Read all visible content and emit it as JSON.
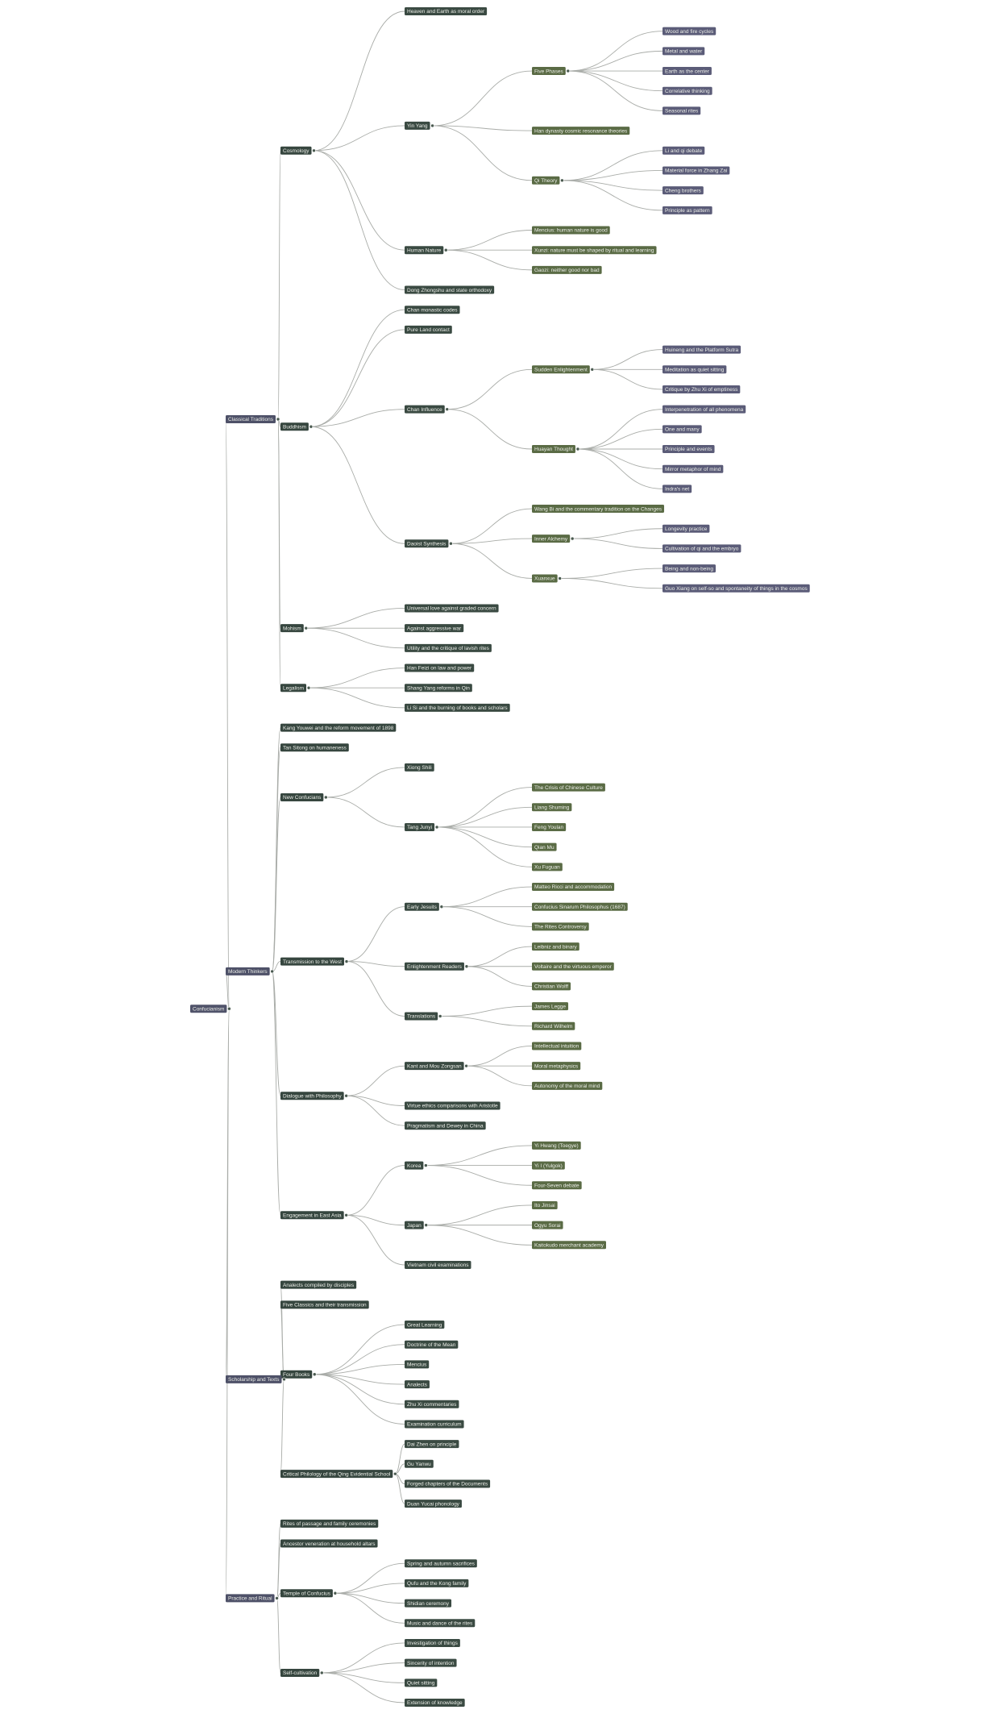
{
  "depth_colors": [
    "#50536a",
    "#4e5168",
    "#36463f",
    "#3a4a42",
    "#5a6b45",
    "#5b5c78"
  ],
  "edge_color": "#a9aca8",
  "tree": {
    "label": "Confucianism",
    "children": [
      {
        "label": "Classical Traditions",
        "children": [
          {
            "label": "Cosmology",
            "children": [
              {
                "label": "Heaven and Earth as moral order"
              },
              {
                "label": "Yin Yang",
                "children": [
                  {
                    "label": "Five Phases",
                    "children": [
                      {
                        "label": "Wood and fire cycles"
                      },
                      {
                        "label": "Metal and water"
                      },
                      {
                        "label": "Earth as the center"
                      },
                      {
                        "label": "Correlative thinking"
                      },
                      {
                        "label": "Seasonal rites"
                      }
                    ]
                  },
                  {
                    "label": "Han dynasty cosmic resonance theories"
                  },
                  {
                    "label": "Qi Theory",
                    "children": [
                      {
                        "label": "Li and qi debate"
                      },
                      {
                        "label": "Material force in Zhang Zai"
                      },
                      {
                        "label": "Cheng brothers"
                      },
                      {
                        "label": "Principle as pattern"
                      }
                    ]
                  }
                ]
              },
              {
                "label": "Human Nature",
                "children": [
                  {
                    "label": "Mencius: human nature is good"
                  },
                  {
                    "label": "Xunzi: nature must be shaped by ritual and learning"
                  },
                  {
                    "label": "Gaozi: neither good nor bad"
                  }
                ]
              },
              {
                "label": "Dong Zhongshu and state orthodoxy"
              }
            ]
          },
          {
            "label": "Buddhism",
            "children": [
              {
                "label": "Chan monastic codes"
              },
              {
                "label": "Pure Land contact"
              },
              {
                "label": "Chan Influence",
                "children": [
                  {
                    "label": "Sudden Enlightenment",
                    "children": [
                      {
                        "label": "Huineng and the Platform Sutra"
                      },
                      {
                        "label": "Meditation as quiet sitting"
                      },
                      {
                        "label": "Critique by Zhu Xi of emptiness"
                      }
                    ]
                  },
                  {
                    "label": "Huayan Thought",
                    "children": [
                      {
                        "label": "Interpenetration of all phenomena"
                      },
                      {
                        "label": "One and many"
                      },
                      {
                        "label": "Principle and events"
                      },
                      {
                        "label": "Mirror metaphor of mind"
                      },
                      {
                        "label": "Indra's net"
                      }
                    ]
                  }
                ]
              },
              {
                "label": "Daoist Synthesis",
                "children": [
                  {
                    "label": "Wang Bi and the commentary tradition on the Changes"
                  },
                  {
                    "label": "Inner Alchemy",
                    "children": [
                      {
                        "label": "Longevity practice"
                      },
                      {
                        "label": "Cultivation of qi and the embryo"
                      }
                    ]
                  },
                  {
                    "label": "Xuanxue",
                    "children": [
                      {
                        "label": "Being and non-being"
                      },
                      {
                        "label": "Guo Xiang on self-so and spontaneity of things in the cosmos"
                      }
                    ]
                  }
                ]
              }
            ]
          },
          {
            "label": "Mohism",
            "children": [
              {
                "label": "Universal love against graded concern"
              },
              {
                "label": "Against aggressive war"
              },
              {
                "label": "Utility and the critique of lavish rites"
              }
            ]
          },
          {
            "label": "Legalism",
            "children": [
              {
                "label": "Han Feizi on law and power"
              },
              {
                "label": "Shang Yang reforms in Qin"
              },
              {
                "label": "Li Si and the burning of books and scholars"
              }
            ]
          }
        ]
      },
      {
        "label": "Modern Thinkers",
        "children": [
          {
            "label": "Kang Youwei and the reform movement of 1898"
          },
          {
            "label": "Tan Sitong on humaneness"
          },
          {
            "label": "New Confucians",
            "children": [
              {
                "label": "Xiong Shili"
              },
              {
                "label": "Tang Junyi",
                "children": [
                  {
                    "label": "The Crisis of Chinese Culture"
                  },
                  {
                    "label": "Liang Shuming"
                  },
                  {
                    "label": "Feng Youlan"
                  },
                  {
                    "label": "Qian Mu"
                  },
                  {
                    "label": "Xu Fuguan"
                  }
                ]
              }
            ]
          },
          {
            "label": "Transmission to the West",
            "children": [
              {
                "label": "Early Jesuits",
                "children": [
                  {
                    "label": "Matteo Ricci and accommodation"
                  },
                  {
                    "label": "Confucius Sinarum Philosophus (1687)"
                  },
                  {
                    "label": "The Rites Controversy"
                  }
                ]
              },
              {
                "label": "Enlightenment Readers",
                "children": [
                  {
                    "label": "Leibniz and binary"
                  },
                  {
                    "label": "Voltaire and the virtuous emperor"
                  },
                  {
                    "label": "Christian Wolff"
                  }
                ]
              },
              {
                "label": "Translations",
                "children": [
                  {
                    "label": "James Legge"
                  },
                  {
                    "label": "Richard Wilhelm"
                  }
                ]
              }
            ]
          },
          {
            "label": "Dialogue with Philosophy",
            "children": [
              {
                "label": "Kant and Mou Zongsan",
                "children": [
                  {
                    "label": "Intellectual intuition"
                  },
                  {
                    "label": "Moral metaphysics"
                  },
                  {
                    "label": "Autonomy of the moral mind"
                  }
                ]
              },
              {
                "label": "Virtue ethics comparisons with Aristotle"
              },
              {
                "label": "Pragmatism and Dewey in China"
              }
            ]
          },
          {
            "label": "Engagement in East Asia",
            "children": [
              {
                "label": "Korea",
                "children": [
                  {
                    "label": "Yi Hwang (Toegye)"
                  },
                  {
                    "label": "Yi I (Yulgok)"
                  },
                  {
                    "label": "Four-Seven debate"
                  }
                ]
              },
              {
                "label": "Japan",
                "children": [
                  {
                    "label": "Ito Jinsai"
                  },
                  {
                    "label": "Ogyu Sorai"
                  },
                  {
                    "label": "Kaitokudo merchant academy"
                  }
                ]
              },
              {
                "label": "Vietnam civil examinations"
              }
            ]
          }
        ]
      },
      {
        "label": "Scholarship and Texts",
        "children": [
          {
            "label": "Analects compiled by disciples"
          },
          {
            "label": "Five Classics and their transmission"
          },
          {
            "label": "Four Books",
            "children": [
              {
                "label": "Great Learning"
              },
              {
                "label": "Doctrine of the Mean"
              },
              {
                "label": "Mencius"
              },
              {
                "label": "Analects"
              },
              {
                "label": "Zhu Xi commentaries"
              },
              {
                "label": "Examination curriculum"
              }
            ]
          },
          {
            "label": "Critical Philology of the Qing Evidential School",
            "children": [
              {
                "label": "Dai Zhen on principle"
              },
              {
                "label": "Gu Yanwu"
              },
              {
                "label": "Forged chapters of the Documents"
              },
              {
                "label": "Duan Yucai phonology"
              }
            ]
          }
        ]
      },
      {
        "label": "Practice and Ritual",
        "children": [
          {
            "label": "Rites of passage and family ceremonies"
          },
          {
            "label": "Ancestor veneration at household altars"
          },
          {
            "label": "Temple of Confucius",
            "children": [
              {
                "label": "Spring and autumn sacrifices"
              },
              {
                "label": "Qufu and the Kong family"
              },
              {
                "label": "Shidian ceremony"
              },
              {
                "label": "Music and dance of the rites"
              }
            ]
          },
          {
            "label": "Self-cultivation",
            "children": [
              {
                "label": "Investigation of things"
              },
              {
                "label": "Sincerity of intention"
              },
              {
                "label": "Quiet sitting"
              },
              {
                "label": "Extension of knowledge"
              }
            ]
          }
        ]
      }
    ]
  }
}
